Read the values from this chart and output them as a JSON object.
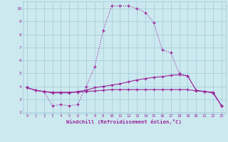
{
  "x": [
    0,
    1,
    2,
    3,
    4,
    5,
    6,
    7,
    8,
    9,
    10,
    11,
    12,
    13,
    14,
    15,
    16,
    17,
    18,
    19,
    20,
    21,
    22,
    23
  ],
  "curve_dotted": [
    3.9,
    3.7,
    3.6,
    2.5,
    2.6,
    2.5,
    2.6,
    4.0,
    5.5,
    8.3,
    10.2,
    10.2,
    10.2,
    10.0,
    9.7,
    8.9,
    6.8,
    6.6,
    5.0,
    4.8,
    3.7,
    3.6,
    3.5,
    2.5
  ],
  "curve_solid_rise": [
    3.9,
    3.7,
    3.6,
    3.5,
    3.5,
    3.5,
    3.6,
    3.7,
    3.9,
    4.0,
    4.1,
    4.2,
    4.35,
    4.5,
    4.6,
    4.7,
    4.75,
    4.85,
    4.9,
    4.8,
    3.7,
    3.6,
    3.5,
    2.5
  ],
  "curve_solid_flat": [
    3.9,
    3.7,
    3.6,
    3.55,
    3.55,
    3.55,
    3.55,
    3.6,
    3.65,
    3.7,
    3.75,
    3.75,
    3.75,
    3.75,
    3.75,
    3.75,
    3.75,
    3.75,
    3.75,
    3.75,
    3.65,
    3.6,
    3.55,
    2.5
  ],
  "line_color": "#9b259a",
  "bg_color": "#cce9f0",
  "grid_color": "#a0c8d5",
  "xlabel": "Windchill (Refroidissement éolien,°C)",
  "ylim_min": 1.9,
  "ylim_max": 10.55,
  "xlim_min": -0.5,
  "xlim_max": 23.5,
  "yticks": [
    2,
    3,
    4,
    5,
    6,
    7,
    8,
    9,
    10
  ],
  "xticks": [
    0,
    1,
    2,
    3,
    4,
    5,
    6,
    7,
    8,
    9,
    10,
    11,
    12,
    13,
    14,
    15,
    16,
    17,
    18,
    19,
    20,
    21,
    22,
    23
  ]
}
